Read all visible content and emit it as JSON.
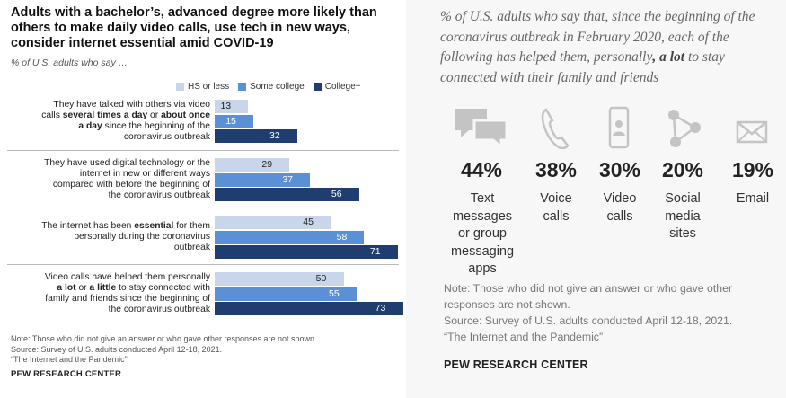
{
  "left": {
    "title": "Adults with a bachelor’s, advanced degree more likely than others to make daily video calls, use tech in new ways, consider internet essential amid COVID-19",
    "subtitle": "% of U.S. adults who say …",
    "note_lines": [
      "Note: Those who did not give an answer or who gave other responses are not shown.",
      "Source: Survey of U.S. adults conducted April 12-18, 2021.",
      "“The Internet and the Pandemic”"
    ],
    "source_org": "PEW RESEARCH CENTER"
  },
  "colors": {
    "hs": "#c9d6ea",
    "some": "#5b8fd6",
    "college": "#1f3d6e"
  },
  "chart_data": {
    "type": "bar",
    "orientation": "horizontal",
    "title": "Adults with a bachelor’s, advanced degree more likely than others to make daily video calls, use tech in new ways, consider internet essential amid COVID-19",
    "subtitle": "% of U.S. adults who say …",
    "categories": [
      "They have talked with others via video calls several times a day or about once a day since the beginning of the coronavirus outbreak",
      "They have used digital technology or the internet in new or different ways compared with before the beginning of the coronavirus outbreak",
      "The internet has been essential for them personally during the coronavirus outbreak",
      "Video calls have helped them personally a lot or a little to stay connected with family and friends since the beginning of the coronavirus outbreak"
    ],
    "series": [
      {
        "name": "HS or less",
        "values": [
          13,
          29,
          45,
          50
        ]
      },
      {
        "name": "Some college",
        "values": [
          15,
          37,
          58,
          55
        ]
      },
      {
        "name": "College+",
        "values": [
          32,
          56,
          71,
          73
        ]
      }
    ],
    "xlim": [
      0,
      100
    ],
    "legend": "top",
    "grid": false
  },
  "label_lines": [
    [
      [
        {
          "t": "They have talked with others via video",
          "b": false
        }
      ],
      [
        {
          "t": "calls ",
          "b": false
        },
        {
          "t": "several times a day",
          "b": true
        },
        {
          "t": " or ",
          "b": false
        },
        {
          "t": "about once",
          "b": true
        }
      ],
      [
        {
          "t": "a day",
          "b": true
        },
        {
          "t": " since the beginning of the",
          "b": false
        }
      ],
      [
        {
          "t": "coronavirus outbreak",
          "b": false
        }
      ]
    ],
    [
      [
        {
          "t": "They have used digital technology or the",
          "b": false
        }
      ],
      [
        {
          "t": "internet in new or different ways",
          "b": false
        }
      ],
      [
        {
          "t": "compared with before the beginning of",
          "b": false
        }
      ],
      [
        {
          "t": "the coronavirus outbreak",
          "b": false
        }
      ]
    ],
    [
      [
        {
          "t": "The internet has been ",
          "b": false
        },
        {
          "t": "essential",
          "b": true
        },
        {
          "t": " for them",
          "b": false
        }
      ],
      [
        {
          "t": "personally during the coronavirus",
          "b": false
        }
      ],
      [
        {
          "t": "outbreak",
          "b": false
        }
      ]
    ],
    [
      [
        {
          "t": "Video calls have helped them personally",
          "b": false
        }
      ],
      [
        {
          "t": "a lot",
          "b": true
        },
        {
          "t": " or ",
          "b": false
        },
        {
          "t": "a little",
          "b": true
        },
        {
          "t": " to stay connected with",
          "b": false
        }
      ],
      [
        {
          "t": "family and friends since the beginning of",
          "b": false
        }
      ],
      [
        {
          "t": "the coronavirus outbreak",
          "b": false
        }
      ]
    ]
  ],
  "right": {
    "heading_parts": [
      {
        "t": "% of U.S. adults who say that, since the beginning of the coronavirus outbreak in February 2020, each of the following has helped them, personally",
        "b": false
      },
      {
        "t": ", a lot",
        "b": true
      },
      {
        "t": " to stay connected with their family and friends",
        "b": false
      }
    ],
    "items": [
      {
        "pct": "44%",
        "lines": [
          "Text messages",
          "or group",
          "messaging",
          "apps"
        ],
        "icon": "chat-bubbles-icon"
      },
      {
        "pct": "38%",
        "lines": [
          "Voice",
          "calls"
        ],
        "icon": "phone-handset-icon"
      },
      {
        "pct": "30%",
        "lines": [
          "Video",
          "calls"
        ],
        "icon": "smartphone-video-icon"
      },
      {
        "pct": "20%",
        "lines": [
          "Social",
          "media",
          "sites"
        ],
        "icon": "social-network-icon"
      },
      {
        "pct": "19%",
        "lines": [
          "Email"
        ],
        "icon": "envelope-icon"
      }
    ],
    "note_lines": [
      "Note: Those who did not give an answer or who gave other",
      "responses are not shown.",
      "Source: Survey of U.S. adults conducted April 12-18, 2021.",
      "“The Internet and the Pandemic”"
    ],
    "source_org": "PEW RESEARCH CENTER"
  }
}
